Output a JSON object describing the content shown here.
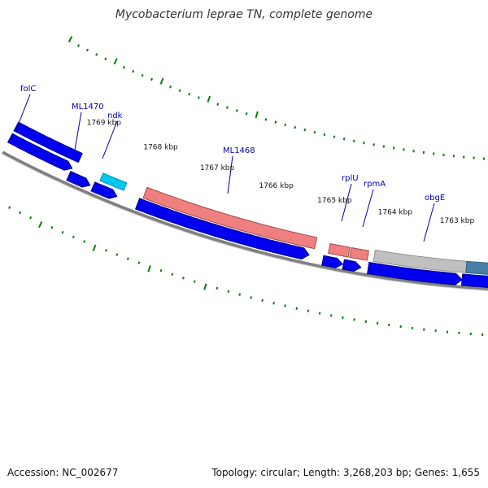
{
  "title": "Mycobacterium leprae TN, complete genome",
  "accession_text": "Accession: NC_002677",
  "summary_text": "Topology: circular; Length: 3,268,203 bp; Genes: 1,655",
  "colors": {
    "cds": "#0000ee",
    "cds_dark": "#00008a",
    "cyan_feature": "#00c8f0",
    "rrna_feature": "#f08080",
    "rrna_dark": "#a04848",
    "gray_feature": "#c0c0c0",
    "gray_dark": "#909090",
    "steel_feature": "#4a7fa8",
    "backbone": "#808080",
    "tick": "#008000",
    "label": "#0000aa"
  },
  "kbp_labels": [
    {
      "name": "1769-kbp",
      "text": "1769 kbp"
    },
    {
      "name": "1768-kbp",
      "text": "1768 kbp"
    },
    {
      "name": "1767-kbp",
      "text": "1767 kbp"
    },
    {
      "name": "1766-kbp",
      "text": "1766 kbp"
    },
    {
      "name": "1765-kbp",
      "text": "1765 kbp"
    },
    {
      "name": "1764-kbp",
      "text": "1764 kbp"
    },
    {
      "name": "1763-kbp",
      "text": "1763 kbp"
    }
  ],
  "gene_labels": [
    {
      "name": "folC",
      "text": "folC"
    },
    {
      "name": "ML1470",
      "text": "ML1470"
    },
    {
      "name": "ndk",
      "text": "ndk"
    },
    {
      "name": "ML1468",
      "text": "ML1468"
    },
    {
      "name": "rplU",
      "text": "rplU"
    },
    {
      "name": "rpmA",
      "text": "rpmA"
    },
    {
      "name": "obgE",
      "text": "obgE"
    }
  ]
}
